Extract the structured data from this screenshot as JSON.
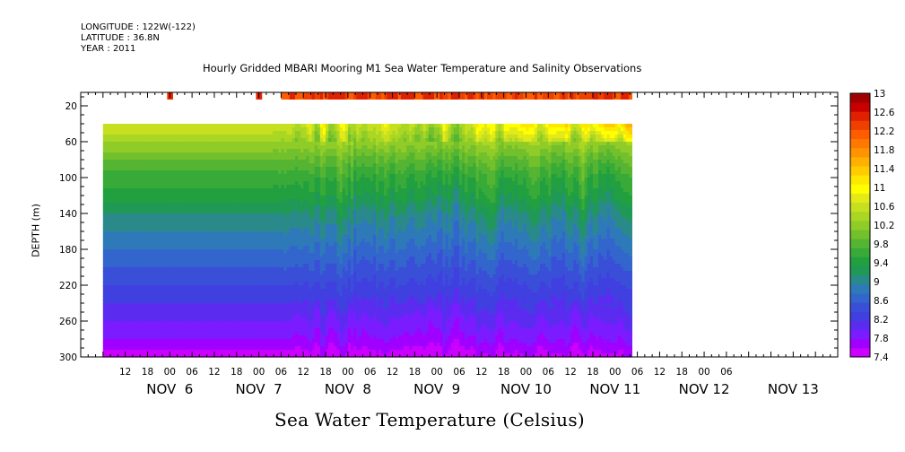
{
  "header": {
    "longitude": "LONGITUDE : 122W(-122)",
    "latitude": "LATITUDE : 36.8N",
    "year": "YEAR : 2011"
  },
  "chart_data": {
    "type": "heatmap",
    "title": "Hourly Gridded MBARI Mooring M1 Sea Water Temperature and Salinity Observations",
    "xlabel": "",
    "ylabel": "DEPTH (m)",
    "colorbar_label": "Sea Water Temperature (Celsius)",
    "units": "Celsius",
    "x_hours_since_nov6_00": [
      6,
      148
    ],
    "x_hour_ticks": [
      "12",
      "18",
      "00",
      "06",
      "12",
      "18",
      "00",
      "06",
      "12",
      "18",
      "00",
      "06",
      "12",
      "18",
      "00",
      "06",
      "12",
      "18",
      "00",
      "06",
      "12",
      "18",
      "00",
      "06",
      "12",
      "18",
      "00",
      "06"
    ],
    "x_day_labels": [
      "NOV  6",
      "NOV  7",
      "NOV  8",
      "NOV  9",
      "NOV 10",
      "NOV 11",
      "NOV 12",
      "NOV 13"
    ],
    "x_day_label_hours": [
      24,
      48,
      72,
      96,
      120,
      144,
      168,
      192
    ],
    "ylim": [
      300,
      0
    ],
    "y_ticks": [
      20,
      60,
      100,
      140,
      180,
      220,
      260,
      300
    ],
    "colorbar": {
      "levels": [
        7.4,
        7.6,
        7.8,
        8.0,
        8.2,
        8.4,
        8.6,
        8.8,
        9.0,
        9.2,
        9.4,
        9.6,
        9.8,
        10.0,
        10.2,
        10.4,
        10.6,
        10.8,
        11.0,
        11.2,
        11.4,
        11.6,
        11.8,
        12.0,
        12.2,
        12.4,
        12.6,
        12.8,
        13.0
      ],
      "tick_labels": [
        "13",
        "12.6",
        "12.2",
        "11.8",
        "11.4",
        "11",
        "10.6",
        "10.2",
        "9.8",
        "9.4",
        "9",
        "8.6",
        "8.2",
        "7.8",
        "7.4"
      ],
      "colors": [
        "#cc00ff",
        "#a000ff",
        "#7a1cff",
        "#5b2cf0",
        "#4040e0",
        "#3a4fd8",
        "#3366cc",
        "#2e7ab8",
        "#2a8a8a",
        "#1f9955",
        "#22a040",
        "#38aa38",
        "#55b532",
        "#72c02c",
        "#90cc28",
        "#aad624",
        "#c6e020",
        "#e2ea18",
        "#ffff00",
        "#ffe800",
        "#ffcc00",
        "#ffb000",
        "#ff9400",
        "#ff7800",
        "#ff5c00",
        "#f04000",
        "#e02000",
        "#c80000",
        "#a00000"
      ]
    },
    "depth_profile": {
      "depths": [
        4,
        30,
        40,
        60,
        80,
        100,
        120,
        140,
        160,
        180,
        200,
        220,
        240,
        260,
        280,
        300
      ],
      "temperature": [
        12.5,
        11.0,
        10.8,
        10.4,
        10.0,
        9.7,
        9.5,
        9.2,
        9.0,
        8.8,
        8.6,
        8.4,
        8.2,
        8.0,
        7.8,
        7.5
      ]
    },
    "surface_sensor_gap_hours": [
      [
        6,
        23.5
      ],
      [
        24.5,
        47.5
      ],
      [
        48.5,
        54
      ]
    ]
  }
}
